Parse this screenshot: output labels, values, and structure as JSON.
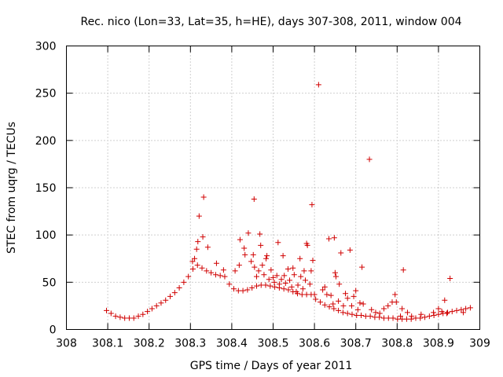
{
  "chart_data": {
    "type": "scatter",
    "title": "Rec. nico (Lon=33, Lat=35, h=HE), days 307-308, 2011, window 004",
    "xlabel": "GPS time / Days of year 2011",
    "ylabel": "STEC from uqrg / TECUs",
    "xlim": [
      308,
      309
    ],
    "ylim": [
      0,
      300
    ],
    "xticks": [
      "308",
      "308.1",
      "308.2",
      "308.3",
      "308.4",
      "308.5",
      "308.6",
      "308.7",
      "308.8",
      "308.9",
      "309"
    ],
    "yticks": [
      "0",
      "50",
      "100",
      "150",
      "200",
      "250",
      "300"
    ],
    "grid": true,
    "marker": "+",
    "color": "#d00000",
    "points": [
      [
        308.097,
        20
      ],
      [
        308.108,
        17
      ],
      [
        308.119,
        14
      ],
      [
        308.13,
        13
      ],
      [
        308.141,
        12
      ],
      [
        308.152,
        12
      ],
      [
        308.163,
        12
      ],
      [
        308.174,
        14
      ],
      [
        308.185,
        16
      ],
      [
        308.196,
        19
      ],
      [
        308.207,
        22
      ],
      [
        308.218,
        25
      ],
      [
        308.229,
        28
      ],
      [
        308.24,
        31
      ],
      [
        308.251,
        35
      ],
      [
        308.262,
        39
      ],
      [
        308.273,
        44
      ],
      [
        308.284,
        50
      ],
      [
        308.295,
        56
      ],
      [
        308.306,
        64
      ],
      [
        308.317,
        68
      ],
      [
        308.328,
        65
      ],
      [
        308.339,
        62
      ],
      [
        308.35,
        60
      ],
      [
        308.361,
        58
      ],
      [
        308.372,
        57
      ],
      [
        308.383,
        56
      ],
      [
        308.394,
        48
      ],
      [
        308.405,
        43
      ],
      [
        308.416,
        41
      ],
      [
        308.427,
        41
      ],
      [
        308.438,
        42
      ],
      [
        308.449,
        44
      ],
      [
        308.46,
        46
      ],
      [
        308.471,
        47
      ],
      [
        308.482,
        47
      ],
      [
        308.493,
        46
      ],
      [
        308.504,
        45
      ],
      [
        308.515,
        44
      ],
      [
        308.526,
        43
      ],
      [
        308.537,
        42
      ],
      [
        308.548,
        40
      ],
      [
        308.559,
        38
      ],
      [
        308.57,
        37
      ],
      [
        308.581,
        37
      ],
      [
        308.592,
        37
      ],
      [
        308.603,
        32
      ],
      [
        308.614,
        29
      ],
      [
        308.625,
        26
      ],
      [
        308.636,
        24
      ],
      [
        308.647,
        22
      ],
      [
        308.658,
        20
      ],
      [
        308.669,
        18
      ],
      [
        308.68,
        17
      ],
      [
        308.691,
        16
      ],
      [
        308.702,
        15
      ],
      [
        308.713,
        15
      ],
      [
        308.724,
        14
      ],
      [
        308.735,
        14
      ],
      [
        308.746,
        13
      ],
      [
        308.757,
        13
      ],
      [
        308.768,
        12
      ],
      [
        308.779,
        12
      ],
      [
        308.79,
        12
      ],
      [
        308.801,
        11
      ],
      [
        308.812,
        11
      ],
      [
        308.823,
        11
      ],
      [
        308.834,
        11
      ],
      [
        308.845,
        12
      ],
      [
        308.856,
        12
      ],
      [
        308.867,
        13
      ],
      [
        308.878,
        14
      ],
      [
        308.889,
        15
      ],
      [
        308.9,
        16
      ],
      [
        308.911,
        17
      ],
      [
        308.922,
        18
      ],
      [
        308.933,
        19
      ],
      [
        308.944,
        20
      ],
      [
        308.955,
        21
      ],
      [
        308.966,
        22
      ],
      [
        308.977,
        23
      ],
      [
        308.305,
        72
      ],
      [
        308.31,
        75
      ],
      [
        308.315,
        85
      ],
      [
        308.318,
        93
      ],
      [
        308.321,
        120
      ],
      [
        308.33,
        98
      ],
      [
        308.332,
        140
      ],
      [
        308.342,
        87
      ],
      [
        308.363,
        70
      ],
      [
        308.38,
        63
      ],
      [
        308.408,
        62
      ],
      [
        308.418,
        68
      ],
      [
        308.42,
        95
      ],
      [
        308.43,
        86
      ],
      [
        308.432,
        79
      ],
      [
        308.44,
        102
      ],
      [
        308.447,
        72
      ],
      [
        308.452,
        79
      ],
      [
        308.454,
        138
      ],
      [
        308.455,
        66
      ],
      [
        308.46,
        56
      ],
      [
        308.465,
        62
      ],
      [
        308.468,
        101
      ],
      [
        308.47,
        89
      ],
      [
        308.474,
        68
      ],
      [
        308.478,
        58
      ],
      [
        308.483,
        75
      ],
      [
        308.485,
        78
      ],
      [
        308.49,
        53
      ],
      [
        308.495,
        63
      ],
      [
        308.5,
        55
      ],
      [
        308.503,
        50
      ],
      [
        308.509,
        57
      ],
      [
        308.512,
        92
      ],
      [
        308.515,
        48
      ],
      [
        308.52,
        53
      ],
      [
        308.524,
        78
      ],
      [
        308.527,
        57
      ],
      [
        308.53,
        49
      ],
      [
        308.536,
        64
      ],
      [
        308.54,
        52
      ],
      [
        308.545,
        45
      ],
      [
        308.548,
        65
      ],
      [
        308.551,
        58
      ],
      [
        308.556,
        40
      ],
      [
        308.56,
        47
      ],
      [
        308.565,
        75
      ],
      [
        308.567,
        56
      ],
      [
        308.572,
        43
      ],
      [
        308.575,
        62
      ],
      [
        308.578,
        52
      ],
      [
        308.581,
        91
      ],
      [
        308.583,
        89
      ],
      [
        308.589,
        48
      ],
      [
        308.592,
        62
      ],
      [
        308.594,
        132
      ],
      [
        308.596,
        73
      ],
      [
        308.6,
        37
      ],
      [
        308.61,
        259
      ],
      [
        308.62,
        42
      ],
      [
        308.625,
        45
      ],
      [
        308.63,
        37
      ],
      [
        308.635,
        96
      ],
      [
        308.64,
        36
      ],
      [
        308.645,
        27
      ],
      [
        308.648,
        97
      ],
      [
        308.65,
        60
      ],
      [
        308.652,
        56
      ],
      [
        308.658,
        30
      ],
      [
        308.66,
        48
      ],
      [
        308.664,
        81
      ],
      [
        308.67,
        25
      ],
      [
        308.675,
        38
      ],
      [
        308.68,
        33
      ],
      [
        308.686,
        84
      ],
      [
        308.69,
        25
      ],
      [
        308.695,
        35
      ],
      [
        308.7,
        41
      ],
      [
        308.705,
        21
      ],
      [
        308.71,
        28
      ],
      [
        308.715,
        66
      ],
      [
        308.718,
        27
      ],
      [
        308.733,
        180
      ],
      [
        308.738,
        21
      ],
      [
        308.748,
        18
      ],
      [
        308.758,
        17
      ],
      [
        308.768,
        22
      ],
      [
        308.778,
        25
      ],
      [
        308.788,
        29
      ],
      [
        308.795,
        37
      ],
      [
        308.798,
        29
      ],
      [
        308.808,
        14
      ],
      [
        308.812,
        22
      ],
      [
        308.815,
        63
      ],
      [
        308.825,
        18
      ],
      [
        308.835,
        14
      ],
      [
        308.858,
        16
      ],
      [
        308.888,
        18
      ],
      [
        308.9,
        22
      ],
      [
        308.908,
        19
      ],
      [
        308.915,
        31
      ],
      [
        308.92,
        17
      ],
      [
        308.928,
        54
      ],
      [
        308.96,
        18
      ]
    ]
  }
}
